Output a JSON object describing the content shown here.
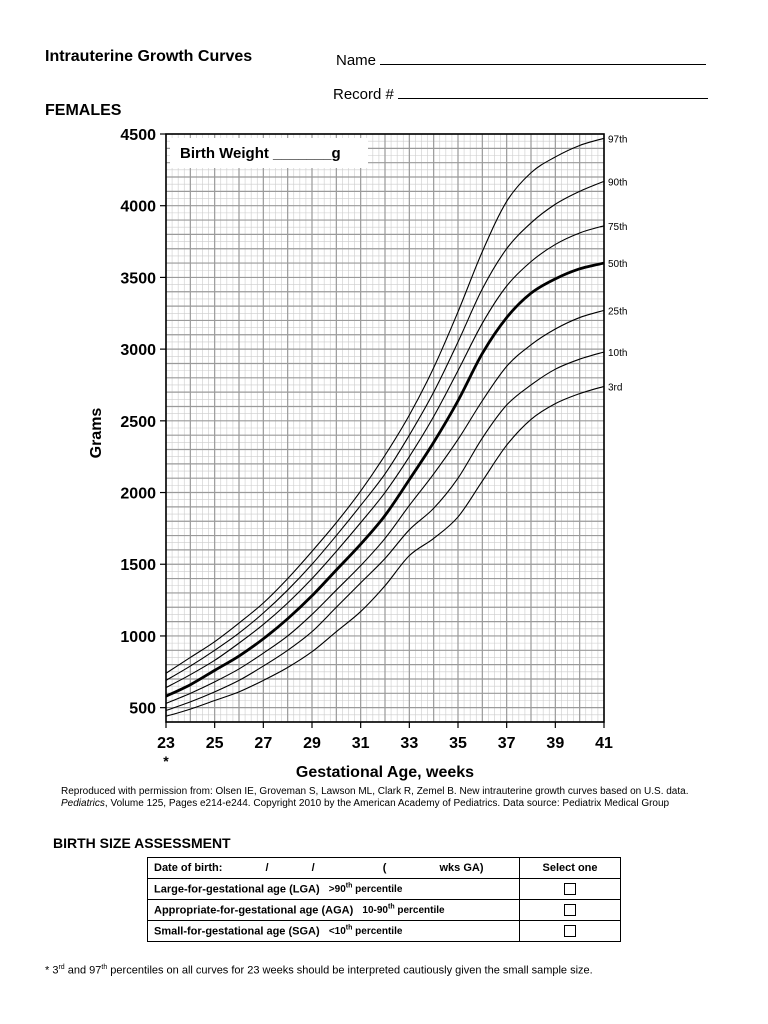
{
  "header": {
    "title": "Intrauterine Growth Curves",
    "name_label": "Name",
    "record_label": "Record #",
    "subtitle": "FEMALES"
  },
  "chart_data": {
    "type": "line",
    "xlabel": "Gestational Age, weeks",
    "ylabel": "Grams",
    "xlim": [
      23,
      41
    ],
    "ylim": [
      400,
      4500
    ],
    "x_ticks": [
      "23",
      "25",
      "27",
      "29",
      "31",
      "33",
      "35",
      "37",
      "39",
      "41"
    ],
    "y_ticks": [
      "500",
      "1000",
      "1500",
      "2000",
      "2500",
      "3000",
      "3500",
      "4000",
      "4500"
    ],
    "x_tick_values": [
      23,
      25,
      27,
      29,
      31,
      33,
      35,
      37,
      39,
      41
    ],
    "y_tick_values": [
      500,
      1000,
      1500,
      2000,
      2500,
      3000,
      3500,
      4000,
      4500
    ],
    "x_footnote_marker": "*",
    "grid": "on",
    "birth_weight_label": "Birth Weight _______g",
    "x": [
      23,
      24,
      25,
      26,
      27,
      28,
      29,
      30,
      31,
      32,
      33,
      34,
      35,
      36,
      37,
      38,
      39,
      40,
      41
    ],
    "series": [
      {
        "name": "97th",
        "bold": false,
        "values": [
          740,
          850,
          960,
          1090,
          1230,
          1400,
          1590,
          1790,
          2010,
          2260,
          2540,
          2870,
          3260,
          3680,
          4030,
          4230,
          4340,
          4420,
          4470
        ]
      },
      {
        "name": "90th",
        "bold": false,
        "values": [
          690,
          790,
          900,
          1020,
          1160,
          1320,
          1500,
          1700,
          1910,
          2130,
          2400,
          2700,
          3050,
          3420,
          3700,
          3880,
          4010,
          4100,
          4170
        ]
      },
      {
        "name": "75th",
        "bold": false,
        "values": [
          640,
          730,
          830,
          950,
          1080,
          1230,
          1400,
          1590,
          1790,
          2000,
          2250,
          2530,
          2850,
          3180,
          3440,
          3610,
          3730,
          3810,
          3860
        ]
      },
      {
        "name": "50th",
        "bold": true,
        "values": [
          580,
          660,
          760,
          860,
          980,
          1120,
          1280,
          1460,
          1640,
          1840,
          2090,
          2350,
          2640,
          2970,
          3220,
          3390,
          3490,
          3560,
          3600
        ]
      },
      {
        "name": "25th",
        "bold": false,
        "values": [
          530,
          600,
          680,
          770,
          880,
          1000,
          1150,
          1320,
          1490,
          1680,
          1910,
          2130,
          2370,
          2640,
          2880,
          3030,
          3140,
          3220,
          3270
        ]
      },
      {
        "name": "10th",
        "bold": false,
        "values": [
          480,
          540,
          610,
          690,
          790,
          900,
          1030,
          1200,
          1370,
          1540,
          1740,
          1890,
          2100,
          2380,
          2610,
          2750,
          2860,
          2930,
          2980
        ]
      },
      {
        "name": "3rd",
        "bold": false,
        "values": [
          440,
          490,
          550,
          610,
          690,
          780,
          890,
          1030,
          1170,
          1350,
          1560,
          1680,
          1830,
          2080,
          2330,
          2510,
          2620,
          2690,
          2740
        ]
      }
    ]
  },
  "credit": {
    "line1": "Reproduced with permission from: Olsen IE, Groveman S, Lawson ML, Clark R, Zemel B. New intrauterine growth curves based on U.S. data.",
    "line2_italic": "Pediatrics",
    "line2_rest": ", Volume 125, Pages e214-e244. Copyright 2010 by the American Academy of Pediatrics.  Data source: Pediatrix Medical Group"
  },
  "assessment": {
    "heading": "BIRTH SIZE ASSESSMENT",
    "dob_label": "Date of birth:",
    "dob_sep1": "/",
    "dob_sep2": "/",
    "dob_paren": "(",
    "dob_wks": "wks GA)",
    "select_label": "Select one",
    "rows": [
      {
        "label": "Large-for-gestational age (LGA)",
        "criterion_pre": ">90",
        "criterion_sup": "th",
        "criterion_post": " percentile"
      },
      {
        "label": "Appropriate-for-gestational age (AGA)",
        "criterion_pre": "10-90",
        "criterion_sup": "th",
        "criterion_post": " percentile"
      },
      {
        "label": "Small-for-gestational age (SGA)",
        "criterion_pre": "<10",
        "criterion_sup": "th",
        "criterion_post": " percentile"
      }
    ]
  },
  "footnote": {
    "star": "* 3",
    "sup1": "rd",
    "mid": " and 97",
    "sup2": "th",
    "rest": " percentiles on all curves for 23 weeks should be interpreted cautiously given the small sample size."
  }
}
